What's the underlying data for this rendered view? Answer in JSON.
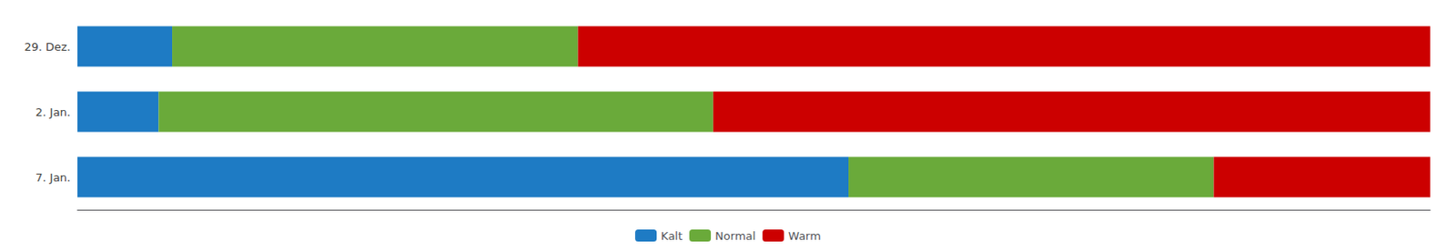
{
  "chart_data": {
    "type": "bar",
    "orientation": "horizontal",
    "stacked": true,
    "categories": [
      "29. Dez.",
      "2. Jan.",
      "7. Jan."
    ],
    "series": [
      {
        "name": "Kalt",
        "color": "#1e7bc4",
        "values": [
          0.07,
          0.06,
          0.57
        ]
      },
      {
        "name": "Normal",
        "color": "#6aaa3a",
        "values": [
          0.3,
          0.41,
          0.27
        ]
      },
      {
        "name": "Warm",
        "color": "#cc0000",
        "values": [
          0.63,
          0.53,
          0.16
        ]
      }
    ],
    "xlim": [
      0,
      1
    ],
    "grid": false,
    "legend": "bottom",
    "tick_labels": "y"
  }
}
